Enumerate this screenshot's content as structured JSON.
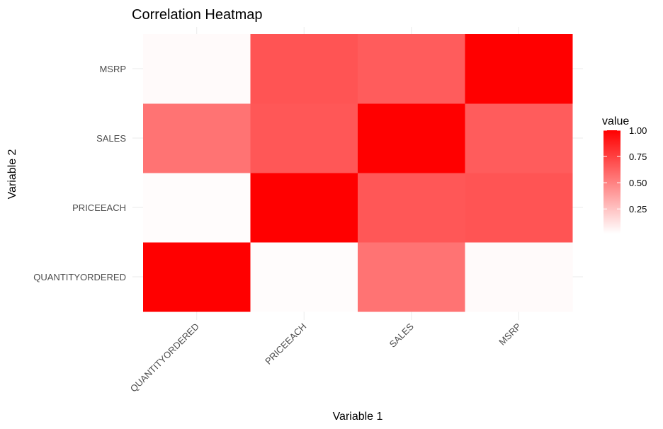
{
  "chart_data": {
    "type": "heatmap",
    "title": "Correlation Heatmap",
    "xlabel": "Variable 1",
    "ylabel": "Variable 2",
    "x_categories": [
      "QUANTITYORDERED",
      "PRICEEACH",
      "SALES",
      "MSRP"
    ],
    "y_categories": [
      "QUANTITYORDERED",
      "PRICEEACH",
      "SALES",
      "MSRP"
    ],
    "values": [
      [
        1.0,
        0.01,
        0.55,
        0.02
      ],
      [
        0.01,
        1.0,
        0.66,
        0.67
      ],
      [
        0.55,
        0.66,
        1.0,
        0.64
      ],
      [
        0.02,
        0.67,
        0.64,
        1.0
      ]
    ],
    "colors": {
      "low": "#ffffff",
      "high": "#ff0000",
      "grid": "#ebebeb"
    },
    "scale": [
      0,
      1
    ],
    "legend": {
      "title": "value",
      "position": "right",
      "breaks": [
        0.25,
        0.5,
        0.75,
        1.0
      ],
      "labels": [
        "0.25",
        "0.50",
        "0.75",
        "1.00"
      ]
    },
    "grid": true
  }
}
